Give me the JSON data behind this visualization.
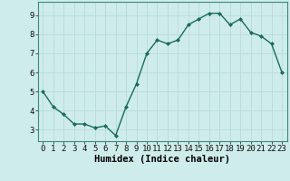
{
  "x": [
    0,
    1,
    2,
    3,
    4,
    5,
    6,
    7,
    8,
    9,
    10,
    11,
    12,
    13,
    14,
    15,
    16,
    17,
    18,
    19,
    20,
    21,
    22,
    23
  ],
  "y": [
    5.0,
    4.2,
    3.8,
    3.3,
    3.3,
    3.1,
    3.2,
    2.7,
    4.2,
    5.4,
    7.0,
    7.7,
    7.5,
    7.7,
    8.5,
    8.8,
    9.1,
    9.1,
    8.5,
    8.8,
    8.1,
    7.9,
    7.5,
    6.0
  ],
  "xlabel": "Humidex (Indice chaleur)",
  "line_color": "#1a6b5a",
  "marker": "D",
  "marker_size": 2.0,
  "line_width": 1.0,
  "background_color": "#ceecea",
  "plot_bg_color": "#ceecea",
  "grid_color": "#b8dbd8",
  "xlim": [
    -0.5,
    23.5
  ],
  "ylim": [
    2.4,
    9.7
  ],
  "yticks": [
    3,
    4,
    5,
    6,
    7,
    8,
    9
  ],
  "xticks": [
    0,
    1,
    2,
    3,
    4,
    5,
    6,
    7,
    8,
    9,
    10,
    11,
    12,
    13,
    14,
    15,
    16,
    17,
    18,
    19,
    20,
    21,
    22,
    23
  ],
  "xlabel_fontsize": 7.5,
  "tick_fontsize": 6.5
}
